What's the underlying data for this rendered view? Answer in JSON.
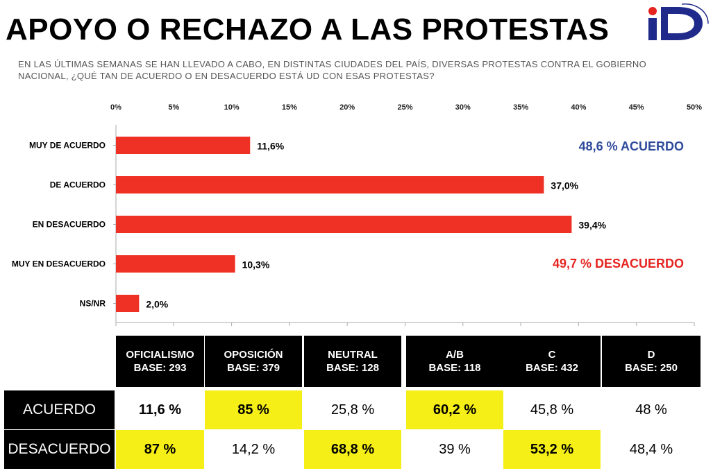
{
  "title": "APOYO O RECHAZO A LAS PROTESTAS",
  "subtitle": "EN LAS ÚLTIMAS SEMANAS SE HAN LLEVADO A CABO, EN DISTINTAS CIUDADES DEL PAÍS, DIVERSAS PROTESTAS CONTRA EL GOBIERNO NACIONAL, ¿QUÉ TAN DE ACUERDO O EN DESACUERDO ESTÁ UD CON ESAS PROTESTAS?",
  "colors": {
    "bar": "#ee3124",
    "acuerdo": "#2e4a9b",
    "desacuerdo": "#e52420",
    "highlight": "#f5ef17"
  },
  "chart_data": {
    "type": "bar",
    "orientation": "horizontal",
    "categories": [
      "MUY DE ACUERDO",
      "DE ACUERDO",
      "EN DESACUERDO",
      "MUY EN DESACUERDO",
      "NS/NR"
    ],
    "values": [
      11.6,
      37.0,
      39.4,
      10.3,
      2.0
    ],
    "value_labels": [
      "11,6%",
      "37,0%",
      "39,4%",
      "10,3%",
      "2,0%"
    ],
    "xlim": [
      0,
      50
    ],
    "xticks": [
      0,
      5,
      10,
      15,
      20,
      25,
      30,
      35,
      40,
      45,
      50
    ],
    "xtick_labels": [
      "0%",
      "5%",
      "10%",
      "15%",
      "20%",
      "25%",
      "30%",
      "35%",
      "40%",
      "45%",
      "50%"
    ],
    "annotations": [
      {
        "text": "48,6 % ACUERDO",
        "color": "#2e4a9b"
      },
      {
        "text": "49,7 % DESACUERDO",
        "color": "#e52420"
      }
    ]
  },
  "table": {
    "columns": [
      {
        "name": "OFICIALISMO",
        "base": "BASE: 293"
      },
      {
        "name": "OPOSICIÓN",
        "base": "BASE: 379"
      },
      {
        "name": "NEUTRAL",
        "base": "BASE: 128"
      },
      {
        "name": "A/B",
        "base": "BASE:  118"
      },
      {
        "name": "C",
        "base": "BASE: 432"
      },
      {
        "name": "D",
        "base": "BASE: 250"
      }
    ],
    "rows": [
      {
        "label": "ACUERDO",
        "values": [
          "11,6 %",
          "85 %",
          "25,8 %",
          "60,2 %",
          "45,8 %",
          "48 %"
        ],
        "highlight": [
          false,
          true,
          false,
          true,
          false,
          false
        ]
      },
      {
        "label": "DESACUERDO",
        "values": [
          "87 %",
          "14,2 %",
          "68,8 %",
          "39 %",
          "53,2 %",
          "48,4 %"
        ],
        "highlight": [
          true,
          false,
          true,
          false,
          true,
          false
        ]
      }
    ]
  }
}
